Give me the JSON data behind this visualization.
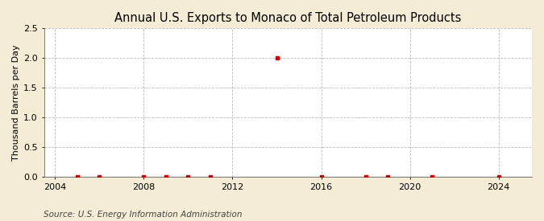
{
  "title": "Annual U.S. Exports to Monaco of Total Petroleum Products",
  "ylabel": "Thousand Barrels per Day",
  "source": "Source: U.S. Energy Information Administration",
  "background_color": "#f5ecd5",
  "plot_bg_color": "#ffffff",
  "xlim": [
    2003.5,
    2025.5
  ],
  "ylim": [
    0.0,
    2.5
  ],
  "xticks": [
    2004,
    2008,
    2012,
    2016,
    2020,
    2024
  ],
  "yticks": [
    0.0,
    0.5,
    1.0,
    1.5,
    2.0,
    2.5
  ],
  "data_x": [
    2005,
    2006,
    2008,
    2009,
    2010,
    2011,
    2014,
    2016,
    2018,
    2019,
    2021,
    2024
  ],
  "data_y": [
    0.0,
    0.0,
    0.0,
    0.0,
    0.0,
    0.0,
    2.0,
    0.0,
    0.0,
    0.0,
    0.0,
    0.0
  ],
  "marker_color": "#cc0000",
  "marker_size": 3,
  "line_color": "#000000",
  "grid_color": "#bbbbbb",
  "title_fontsize": 10.5,
  "label_fontsize": 8,
  "tick_fontsize": 8,
  "source_fontsize": 7.5
}
